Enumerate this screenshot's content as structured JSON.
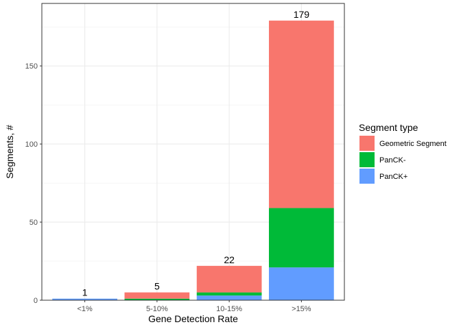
{
  "chart_data": {
    "type": "bar",
    "stacked": true,
    "categories": [
      "<1%",
      "5-10%",
      "10-15%",
      ">15%"
    ],
    "series": [
      {
        "name": "Geometric Segment",
        "color": "#F8766D",
        "values": [
          0,
          4,
          17,
          120
        ]
      },
      {
        "name": "PanCK-",
        "color": "#00BA38",
        "values": [
          0,
          1,
          2,
          38
        ]
      },
      {
        "name": "PanCK+",
        "color": "#619CFF",
        "values": [
          1,
          0,
          3,
          21
        ]
      }
    ],
    "totals": [
      "1",
      "5",
      "22",
      "179"
    ],
    "xlabel": "Gene Detection Rate",
    "ylabel": "Segments, #",
    "ylim": [
      0,
      190
    ],
    "yticks": [
      0,
      50,
      100,
      150
    ],
    "grid": true,
    "legend": {
      "title": "Segment type",
      "placement": "right"
    }
  }
}
